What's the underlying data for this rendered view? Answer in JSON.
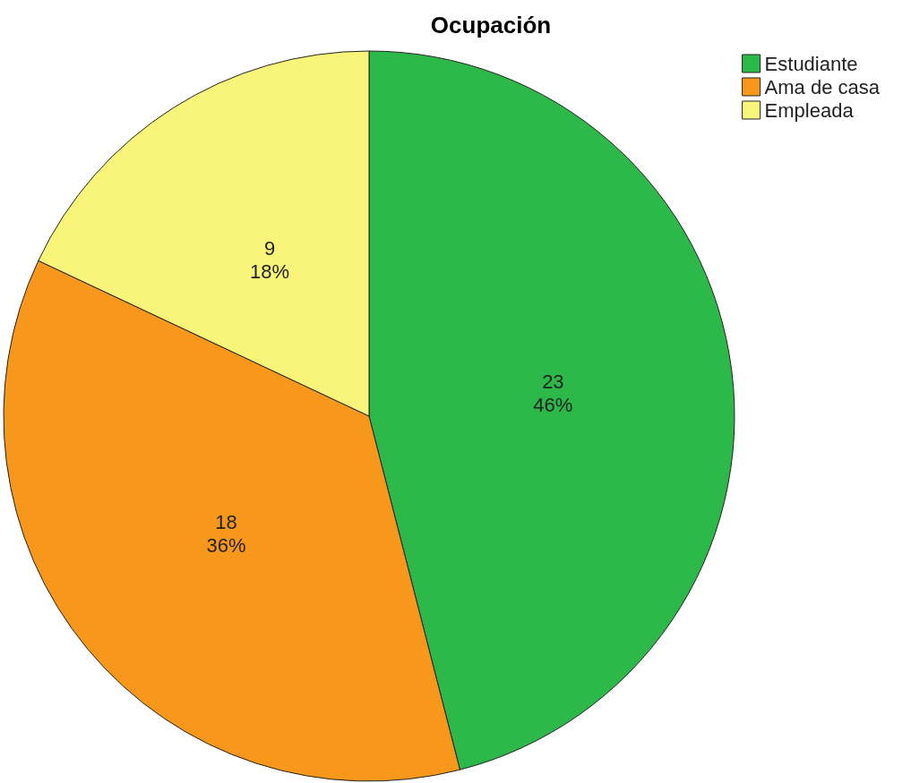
{
  "chart_data": {
    "type": "pie",
    "title": "Ocupación",
    "categories": [
      "Estudiante",
      "Ama de casa",
      "Empleada"
    ],
    "values": [
      23,
      18,
      9
    ],
    "colors": [
      "#2db84a",
      "#f7981d",
      "#f9f57a"
    ],
    "value_labels": [
      "23\n46%",
      "18\n36%",
      "9\n18%"
    ],
    "legend": "top right"
  }
}
